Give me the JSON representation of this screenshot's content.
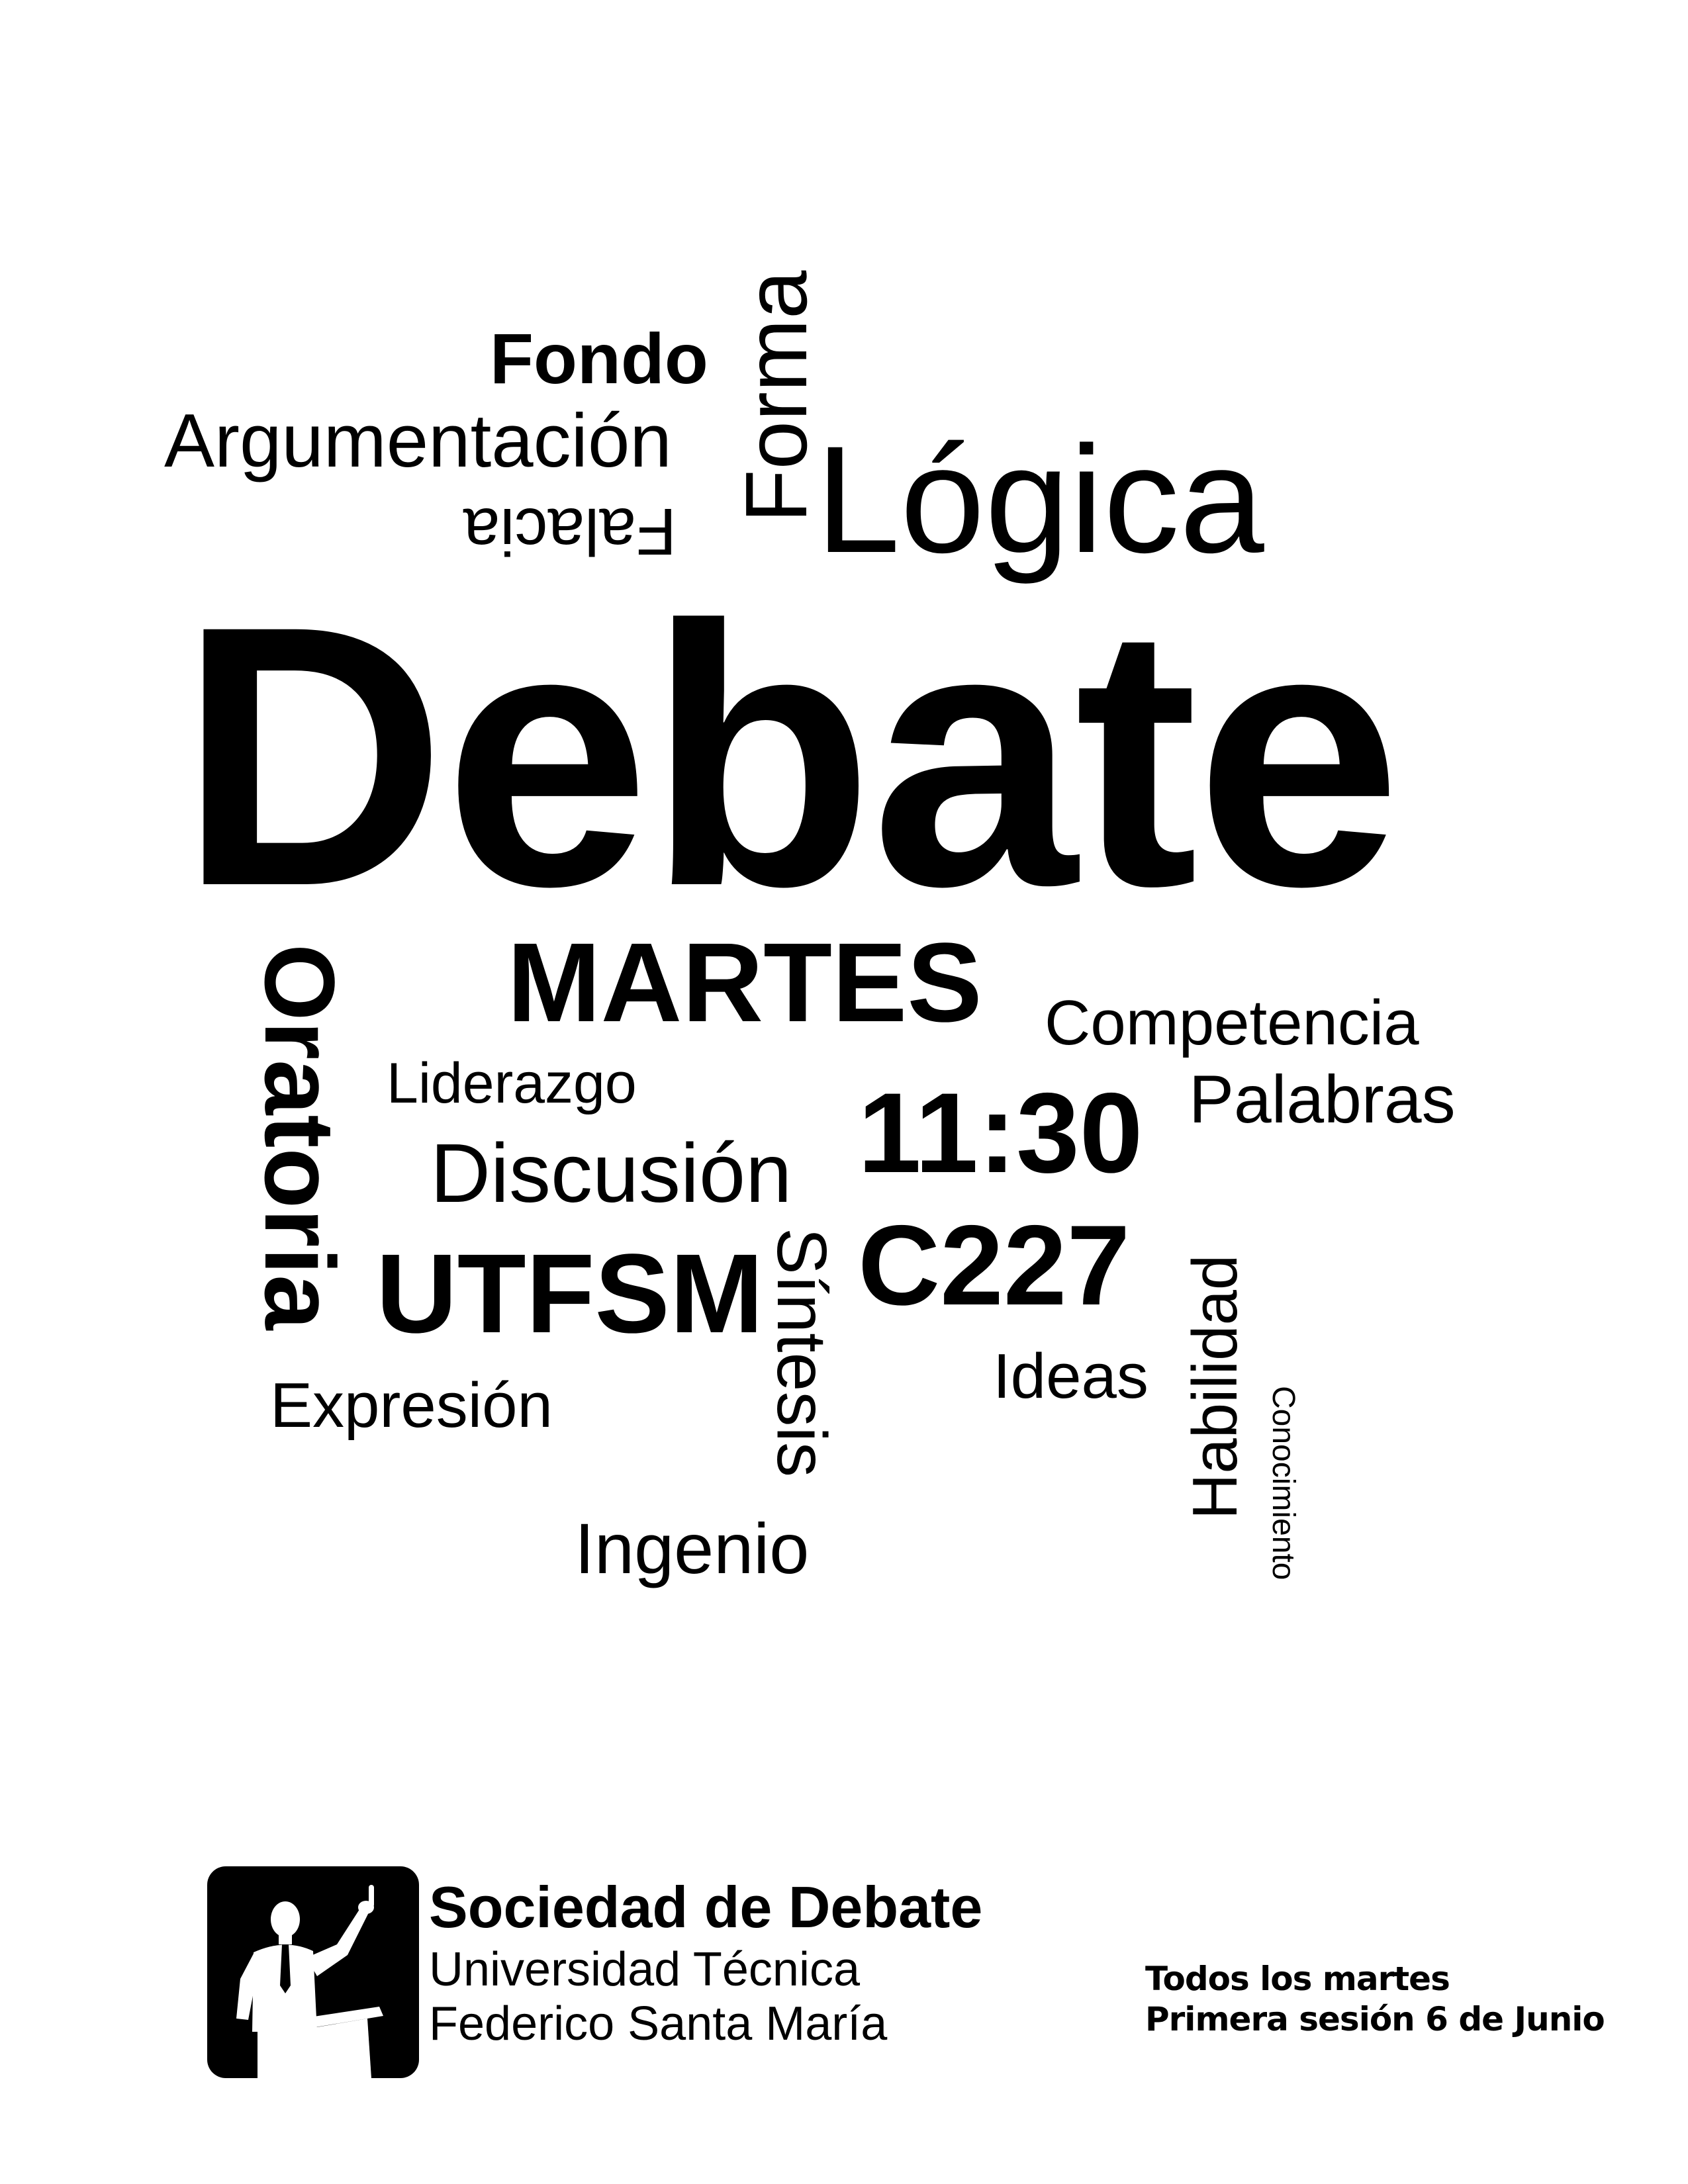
{
  "word_cloud": {
    "fondo": "Fondo",
    "argumentacion": "Argumentación",
    "falacia": "Falacia",
    "forma": "Forma",
    "logica": "Lógica",
    "debate": "Debate",
    "martes": "MARTES",
    "competencia": "Competencia",
    "oratoria": "Oratoria",
    "liderazgo": "Liderazgo",
    "palabras": "Palabras",
    "hora": "11:30",
    "discusion": "Discusión",
    "habilidad": "Habilidad",
    "sintesis": "Síntesis",
    "sala": "C227",
    "utfsm": "UTFSM",
    "conocimiento": "Conocimiento",
    "ideas": "Ideas",
    "expresion": "Expresión",
    "ingenio": "Ingenio"
  },
  "footer": {
    "logo_icon": "speaker-at-podium-icon",
    "org_name": "Sociedad de Debate",
    "org_line1": "Universidad Técnica",
    "org_line2": "Federico Santa María",
    "schedule_line1": "Todos los martes",
    "schedule_line2": "Primera sesión 6 de Junio"
  },
  "colors": {
    "background": "#ffffff",
    "text": "#000000"
  }
}
